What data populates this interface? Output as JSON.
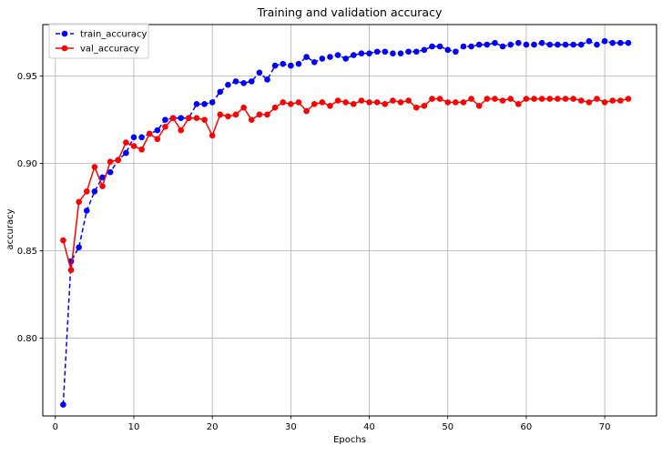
{
  "chart_data": {
    "type": "line",
    "title": "Training and validation accuracy",
    "xlabel": "Epochs",
    "ylabel": "accuracy",
    "xlim": [
      -1.6,
      76.6
    ],
    "ylim": [
      0.7555,
      0.9795
    ],
    "xticks": [
      0,
      10,
      20,
      30,
      40,
      50,
      60,
      70
    ],
    "yticks": [
      0.8,
      0.85,
      0.9,
      0.95
    ],
    "xtick_labels": [
      "0",
      "10",
      "20",
      "30",
      "40",
      "50",
      "60",
      "70"
    ],
    "ytick_labels": [
      "0.80",
      "0.85",
      "0.90",
      "0.95"
    ],
    "grid": true,
    "legend": "upper-left",
    "x": [
      1,
      2,
      3,
      4,
      5,
      6,
      7,
      8,
      9,
      10,
      11,
      12,
      13,
      14,
      15,
      16,
      17,
      18,
      19,
      20,
      21,
      22,
      23,
      24,
      25,
      26,
      27,
      28,
      29,
      30,
      31,
      32,
      33,
      34,
      35,
      36,
      37,
      38,
      39,
      40,
      41,
      42,
      43,
      44,
      45,
      46,
      47,
      48,
      49,
      50,
      51,
      52,
      53,
      54,
      55,
      56,
      57,
      58,
      59,
      60,
      61,
      62,
      63,
      64,
      65,
      66,
      67,
      68,
      69,
      70,
      71,
      72,
      73
    ],
    "series": [
      {
        "name": "train_accuracy",
        "color": "#0000ff",
        "linestyle": "dashed",
        "values": [
          0.762,
          0.844,
          0.852,
          0.873,
          0.884,
          0.892,
          0.895,
          0.902,
          0.906,
          0.915,
          0.915,
          0.917,
          0.919,
          0.925,
          0.926,
          0.926,
          0.926,
          0.934,
          0.934,
          0.935,
          0.941,
          0.945,
          0.947,
          0.946,
          0.947,
          0.952,
          0.948,
          0.956,
          0.957,
          0.956,
          0.957,
          0.961,
          0.958,
          0.96,
          0.961,
          0.962,
          0.96,
          0.962,
          0.963,
          0.963,
          0.964,
          0.964,
          0.963,
          0.963,
          0.964,
          0.964,
          0.965,
          0.967,
          0.967,
          0.965,
          0.964,
          0.967,
          0.967,
          0.968,
          0.968,
          0.969,
          0.967,
          0.968,
          0.969,
          0.968,
          0.968,
          0.969,
          0.968,
          0.968,
          0.968,
          0.968,
          0.968,
          0.97,
          0.968,
          0.97,
          0.969,
          0.969,
          0.969
        ]
      },
      {
        "name": "val_accuracy",
        "color": "#ff0000",
        "linestyle": "solid",
        "values": [
          0.856,
          0.839,
          0.878,
          0.884,
          0.898,
          0.887,
          0.901,
          0.902,
          0.912,
          0.91,
          0.908,
          0.917,
          0.914,
          0.921,
          0.926,
          0.919,
          0.926,
          0.926,
          0.925,
          0.916,
          0.928,
          0.927,
          0.928,
          0.932,
          0.925,
          0.928,
          0.928,
          0.932,
          0.935,
          0.934,
          0.935,
          0.93,
          0.934,
          0.935,
          0.933,
          0.936,
          0.935,
          0.934,
          0.936,
          0.935,
          0.935,
          0.934,
          0.936,
          0.935,
          0.936,
          0.932,
          0.933,
          0.937,
          0.937,
          0.935,
          0.935,
          0.935,
          0.937,
          0.933,
          0.937,
          0.937,
          0.936,
          0.937,
          0.934,
          0.937,
          0.937,
          0.937,
          0.937,
          0.937,
          0.937,
          0.937,
          0.936,
          0.935,
          0.937,
          0.935,
          0.936,
          0.936,
          0.937
        ]
      }
    ]
  }
}
